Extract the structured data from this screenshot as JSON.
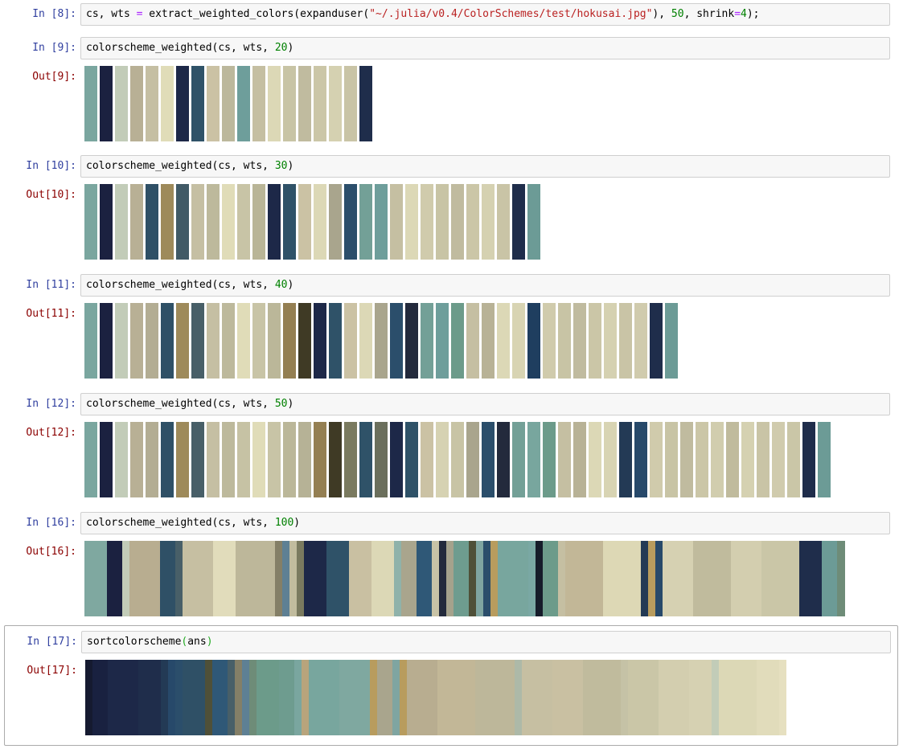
{
  "cells": [
    {
      "in_prompt": "In [8]:",
      "code_tokens": [
        {
          "t": "cs, wts ",
          "c": ""
        },
        {
          "t": "=",
          "c": "op"
        },
        {
          "t": " extract_weighted_colors(expanduser(",
          "c": ""
        },
        {
          "t": "\"~/.julia/v0.4/ColorSchemes/test/hokusai.jpg\"",
          "c": "str"
        },
        {
          "t": "), ",
          "c": ""
        },
        {
          "t": "50",
          "c": "num"
        },
        {
          "t": ", shrink",
          "c": ""
        },
        {
          "t": "=",
          "c": "op"
        },
        {
          "t": "4",
          "c": "num"
        },
        {
          "t": ");",
          "c": ""
        }
      ],
      "out_prompt": "",
      "swatch_style": "separated",
      "swatches": []
    },
    {
      "in_prompt": "In [9]:",
      "code_tokens": [
        {
          "t": "colorscheme_weighted(cs, wts, ",
          "c": ""
        },
        {
          "t": "20",
          "c": "num"
        },
        {
          "t": ")",
          "c": ""
        }
      ],
      "out_prompt": "Out[9]:",
      "swatch_style": "separated",
      "swatches": [
        {
          "color": "#7aa69f"
        },
        {
          "color": "#1b2140"
        },
        {
          "color": "#c2ccb8"
        },
        {
          "color": "#b8b095"
        },
        {
          "color": "#c5bfa3"
        },
        {
          "color": "#e0dcb8"
        },
        {
          "color": "#1d2848"
        },
        {
          "color": "#2f5268"
        },
        {
          "color": "#cbc2a4"
        },
        {
          "color": "#bcb89c"
        },
        {
          "color": "#6e9e9b"
        },
        {
          "color": "#c5bfa2"
        },
        {
          "color": "#dcd8b6"
        },
        {
          "color": "#c8c4a5"
        },
        {
          "color": "#c0bb9f"
        },
        {
          "color": "#cbc6a7"
        },
        {
          "color": "#d5d1b1"
        },
        {
          "color": "#c9c4a6"
        },
        {
          "color": "#1f2d4b"
        }
      ]
    },
    {
      "in_prompt": "In [10]:",
      "code_tokens": [
        {
          "t": "colorscheme_weighted(cs, wts, ",
          "c": ""
        },
        {
          "t": "30",
          "c": "num"
        },
        {
          "t": ")",
          "c": ""
        }
      ],
      "out_prompt": "Out[10]:",
      "swatch_style": "separated",
      "swatches": [
        {
          "color": "#7aa69f"
        },
        {
          "color": "#1b2140"
        },
        {
          "color": "#c2ccb8"
        },
        {
          "color": "#b8b095"
        },
        {
          "color": "#2f5066"
        },
        {
          "color": "#9e8a5a"
        },
        {
          "color": "#415a66"
        },
        {
          "color": "#c5bfa3"
        },
        {
          "color": "#bdb99c"
        },
        {
          "color": "#e0dcb8"
        },
        {
          "color": "#c8c4a6"
        },
        {
          "color": "#b9b597"
        },
        {
          "color": "#1d2848"
        },
        {
          "color": "#2f5268"
        },
        {
          "color": "#cbc2a4"
        },
        {
          "color": "#dcd8b6"
        },
        {
          "color": "#a9a58d"
        },
        {
          "color": "#2b4e6b"
        },
        {
          "color": "#73a097"
        },
        {
          "color": "#6e9e9b"
        },
        {
          "color": "#c5bfa2"
        },
        {
          "color": "#dcd8b6"
        },
        {
          "color": "#d0cbac"
        },
        {
          "color": "#c8c4a5"
        },
        {
          "color": "#c0bb9f"
        },
        {
          "color": "#cbc6a7"
        },
        {
          "color": "#d5d1b1"
        },
        {
          "color": "#c9c4a6"
        },
        {
          "color": "#1f2d4b"
        },
        {
          "color": "#6c9b96"
        }
      ]
    },
    {
      "in_prompt": "In [11]:",
      "code_tokens": [
        {
          "t": "colorscheme_weighted(cs, wts, ",
          "c": ""
        },
        {
          "t": "40",
          "c": "num"
        },
        {
          "t": ")",
          "c": ""
        }
      ],
      "out_prompt": "Out[11]:",
      "swatch_style": "separated",
      "swatches": [
        {
          "color": "#7aa69f"
        },
        {
          "color": "#1b2140"
        },
        {
          "color": "#c2ccb8"
        },
        {
          "color": "#b8b095"
        },
        {
          "color": "#b3ad93"
        },
        {
          "color": "#2f5066"
        },
        {
          "color": "#9e8a5a"
        },
        {
          "color": "#485f68"
        },
        {
          "color": "#c5bfa3"
        },
        {
          "color": "#bdb99c"
        },
        {
          "color": "#e0dcb8"
        },
        {
          "color": "#c8c4a6"
        },
        {
          "color": "#bbb799"
        },
        {
          "color": "#947f52"
        },
        {
          "color": "#3f3a25"
        },
        {
          "color": "#1d2848"
        },
        {
          "color": "#2f5268"
        },
        {
          "color": "#cbc2a4"
        },
        {
          "color": "#dcd8b6"
        },
        {
          "color": "#a9a58d"
        },
        {
          "color": "#2b4e6b"
        },
        {
          "color": "#232a3c"
        },
        {
          "color": "#73a097"
        },
        {
          "color": "#6e9e9b"
        },
        {
          "color": "#6c9b8a"
        },
        {
          "color": "#c5bfa2"
        },
        {
          "color": "#b8b296"
        },
        {
          "color": "#dcd8b6"
        },
        {
          "color": "#d8d4b3"
        },
        {
          "color": "#1f3e5f"
        },
        {
          "color": "#d0cbac"
        },
        {
          "color": "#c8c4a5"
        },
        {
          "color": "#c0bb9f"
        },
        {
          "color": "#cbc6a7"
        },
        {
          "color": "#d5d1b1"
        },
        {
          "color": "#c9c4a6"
        },
        {
          "color": "#d0cbad"
        },
        {
          "color": "#1f2d4b"
        },
        {
          "color": "#6c9b96"
        }
      ]
    },
    {
      "in_prompt": "In [12]:",
      "code_tokens": [
        {
          "t": "colorscheme_weighted(cs, wts, ",
          "c": ""
        },
        {
          "t": "50",
          "c": "num"
        },
        {
          "t": ")",
          "c": ""
        }
      ],
      "out_prompt": "Out[12]:",
      "swatch_style": "separated",
      "swatches": [
        {
          "color": "#7aa69f"
        },
        {
          "color": "#1b2140"
        },
        {
          "color": "#c2ccb8"
        },
        {
          "color": "#b8b095"
        },
        {
          "color": "#b3ad93"
        },
        {
          "color": "#2f5066"
        },
        {
          "color": "#9e8a5a"
        },
        {
          "color": "#485f68"
        },
        {
          "color": "#c5bfa3"
        },
        {
          "color": "#bdb99c"
        },
        {
          "color": "#c6c2a4"
        },
        {
          "color": "#e0dcb8"
        },
        {
          "color": "#c8c4a6"
        },
        {
          "color": "#bbb799"
        },
        {
          "color": "#b6b296"
        },
        {
          "color": "#947f52"
        },
        {
          "color": "#3f3a25"
        },
        {
          "color": "#7a7a5f"
        },
        {
          "color": "#2f5268"
        },
        {
          "color": "#6b6f5c"
        },
        {
          "color": "#1d2848"
        },
        {
          "color": "#2f5268"
        },
        {
          "color": "#cbc2a4"
        },
        {
          "color": "#d6d2b2"
        },
        {
          "color": "#c8c4a5"
        },
        {
          "color": "#a9a58d"
        },
        {
          "color": "#2b4e6b"
        },
        {
          "color": "#232a3c"
        },
        {
          "color": "#73a097"
        },
        {
          "color": "#78a69e"
        },
        {
          "color": "#6c9b8a"
        },
        {
          "color": "#c5bfa2"
        },
        {
          "color": "#b8b296"
        },
        {
          "color": "#dcd8b6"
        },
        {
          "color": "#d8d4b3"
        },
        {
          "color": "#233a55"
        },
        {
          "color": "#27496a"
        },
        {
          "color": "#d0cbac"
        },
        {
          "color": "#c8c4a5"
        },
        {
          "color": "#c0bb9f"
        },
        {
          "color": "#cbc6a7"
        },
        {
          "color": "#d1cdae"
        },
        {
          "color": "#c0bb9d"
        },
        {
          "color": "#d5d1b1"
        },
        {
          "color": "#c9c4a6"
        },
        {
          "color": "#d0cbad"
        },
        {
          "color": "#cac6a7"
        },
        {
          "color": "#1f2d4b"
        },
        {
          "color": "#6c9b96"
        }
      ]
    },
    {
      "in_prompt": "In [16]:",
      "code_tokens": [
        {
          "t": "colorscheme_weighted(cs, wts, ",
          "c": ""
        },
        {
          "t": "100",
          "c": "num"
        },
        {
          "t": ")",
          "c": ""
        }
      ],
      "out_prompt": "Out[16]:",
      "swatch_style": "continuous",
      "swatches": [
        {
          "color": "#7fa8a0",
          "w": 28
        },
        {
          "color": "#1b2140",
          "w": 19
        },
        {
          "color": "#c2ccb8",
          "w": 9
        },
        {
          "color": "#b8ad90",
          "w": 38
        },
        {
          "color": "#2f5066",
          "w": 19
        },
        {
          "color": "#485f68",
          "w": 9
        },
        {
          "color": "#c6bfa2",
          "w": 38
        },
        {
          "color": "#e1dcbb",
          "w": 28
        },
        {
          "color": "#bdb79a",
          "w": 49
        },
        {
          "color": "#847f67",
          "w": 9
        },
        {
          "color": "#5e8094",
          "w": 9
        },
        {
          "color": "#c1bc9e",
          "w": 9
        },
        {
          "color": "#7a7a5f",
          "w": 9
        },
        {
          "color": "#1d2848",
          "w": 28
        },
        {
          "color": "#2f5268",
          "w": 28
        },
        {
          "color": "#c9c0a2",
          "w": 28
        },
        {
          "color": "#dcd8b6",
          "w": 28
        },
        {
          "color": "#8fb2aa",
          "w": 9
        },
        {
          "color": "#a9a58d",
          "w": 19
        },
        {
          "color": "#2f5877",
          "w": 19
        },
        {
          "color": "#c8c3a6",
          "w": 9
        },
        {
          "color": "#232a3c",
          "w": 9
        },
        {
          "color": "#a5a28c",
          "w": 9
        },
        {
          "color": "#6e9c8f",
          "w": 19
        },
        {
          "color": "#4f5038",
          "w": 9
        },
        {
          "color": "#7fa5a1",
          "w": 9
        },
        {
          "color": "#2b4e6b",
          "w": 9
        },
        {
          "color": "#b89c5e",
          "w": 9
        },
        {
          "color": "#78a69e",
          "w": 38
        },
        {
          "color": "#7aa8a4",
          "w": 9
        },
        {
          "color": "#161c2a",
          "w": 9
        },
        {
          "color": "#6c9b8a",
          "w": 19
        },
        {
          "color": "#c5bfa2",
          "w": 9
        },
        {
          "color": "#c2b797",
          "w": 47
        },
        {
          "color": "#ddd8b5",
          "w": 47
        },
        {
          "color": "#233a55",
          "w": 9
        },
        {
          "color": "#b89c5e",
          "w": 9
        },
        {
          "color": "#27496a",
          "w": 9
        },
        {
          "color": "#d6d1b2",
          "w": 38
        },
        {
          "color": "#c0bb9d",
          "w": 47
        },
        {
          "color": "#d3ceaf",
          "w": 38
        },
        {
          "color": "#cac6a7",
          "w": 47
        },
        {
          "color": "#1f2d4b",
          "w": 28
        },
        {
          "color": "#6c9b96",
          "w": 19
        },
        {
          "color": "#6e8c78",
          "w": 10
        }
      ]
    },
    {
      "in_prompt": "In [17]:",
      "code_tokens": [
        {
          "t": "sortcolorscheme",
          "c": ""
        },
        {
          "t": "(",
          "c": "paren"
        },
        {
          "t": "ans",
          "c": ""
        },
        {
          "t": ")",
          "c": "paren"
        }
      ],
      "out_prompt": "Out[17]:",
      "swatch_style": "continuous",
      "swatches": [
        {
          "color": "#151a30",
          "w": 9
        },
        {
          "color": "#192140",
          "w": 19
        },
        {
          "color": "#1d2848",
          "w": 38
        },
        {
          "color": "#1f2d4b",
          "w": 28
        },
        {
          "color": "#233a55",
          "w": 9
        },
        {
          "color": "#27496a",
          "w": 9
        },
        {
          "color": "#2b4e6b",
          "w": 9
        },
        {
          "color": "#2f5066",
          "w": 28
        },
        {
          "color": "#4f5038",
          "w": 9
        },
        {
          "color": "#2f5877",
          "w": 19
        },
        {
          "color": "#485f68",
          "w": 9
        },
        {
          "color": "#847f67",
          "w": 9
        },
        {
          "color": "#5e8094",
          "w": 9
        },
        {
          "color": "#6e8c78",
          "w": 9
        },
        {
          "color": "#6c9b8a",
          "w": 28
        },
        {
          "color": "#6e9c8f",
          "w": 19
        },
        {
          "color": "#7aa69f",
          "w": 9
        },
        {
          "color": "#b8a47c",
          "w": 9
        },
        {
          "color": "#78a69e",
          "w": 38
        },
        {
          "color": "#7fa8a0",
          "w": 38
        },
        {
          "color": "#b89c5e",
          "w": 9
        },
        {
          "color": "#a9a58d",
          "w": 19
        },
        {
          "color": "#7fa5a1",
          "w": 9
        },
        {
          "color": "#b89c5e",
          "w": 9
        },
        {
          "color": "#b8ad90",
          "w": 38
        },
        {
          "color": "#c2b797",
          "w": 47
        },
        {
          "color": "#bdb79a",
          "w": 49
        },
        {
          "color": "#adb9a8",
          "w": 9
        },
        {
          "color": "#c6bfa2",
          "w": 38
        },
        {
          "color": "#c9c0a2",
          "w": 38
        },
        {
          "color": "#c0bb9d",
          "w": 47
        },
        {
          "color": "#c5c2a6",
          "w": 9
        },
        {
          "color": "#cac6a7",
          "w": 38
        },
        {
          "color": "#d3ceaf",
          "w": 38
        },
        {
          "color": "#d6d1b2",
          "w": 28
        },
        {
          "color": "#c2ccb8",
          "w": 9
        },
        {
          "color": "#dcd8b6",
          "w": 47
        },
        {
          "color": "#e1dcbb",
          "w": 28
        },
        {
          "color": "#e6e0c0",
          "w": 9
        }
      ]
    }
  ]
}
